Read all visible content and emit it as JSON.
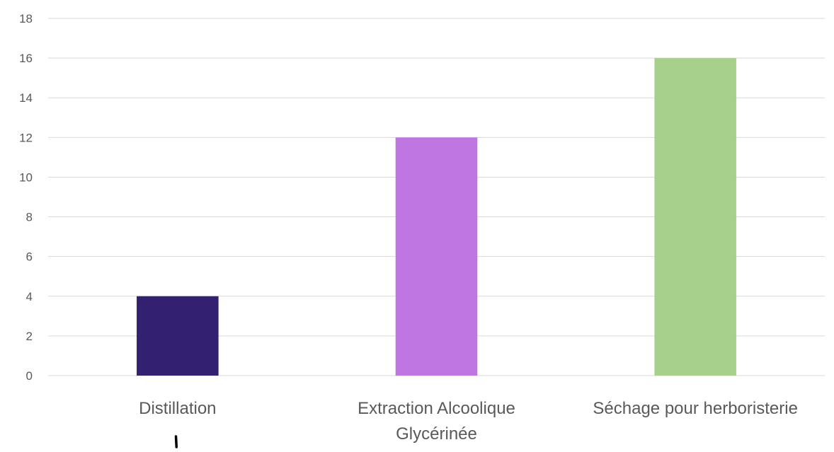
{
  "chart_data": {
    "type": "bar",
    "title": "",
    "xlabel": "",
    "ylabel": "",
    "categories": [
      [
        "Distillation"
      ],
      [
        "Extraction Alcoolique",
        "Glycérinée"
      ],
      [
        "Séchage pour herboristerie"
      ]
    ],
    "values": [
      4,
      12,
      16
    ],
    "colors": [
      "#332070",
      "#BF75E2",
      "#A8D08D"
    ],
    "ylim": [
      0,
      18
    ],
    "yticks": [
      0,
      2,
      4,
      6,
      8,
      10,
      12,
      14,
      16,
      18
    ],
    "grid": true,
    "legend": "none",
    "gridline_color": "#d9d9d9",
    "text_color": "#595959"
  }
}
